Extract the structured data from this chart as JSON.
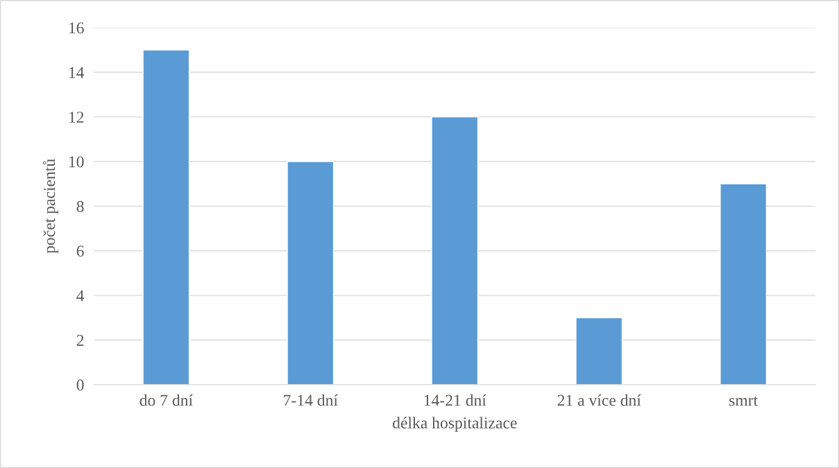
{
  "chart_data": {
    "type": "bar",
    "xlabel": "délka hospitalizace",
    "ylabel": "počet pacientů",
    "categories": [
      "do 7 dní",
      "7-14 dní",
      "14-21 dní",
      "21 a více dní",
      "smrt"
    ],
    "values": [
      15,
      10,
      12,
      3,
      9
    ],
    "color": "#5b9bd5",
    "ylim": [
      0,
      16
    ],
    "yticks": [
      0,
      2,
      4,
      6,
      8,
      10,
      12,
      14,
      16
    ],
    "grid": "y",
    "legend": false
  }
}
